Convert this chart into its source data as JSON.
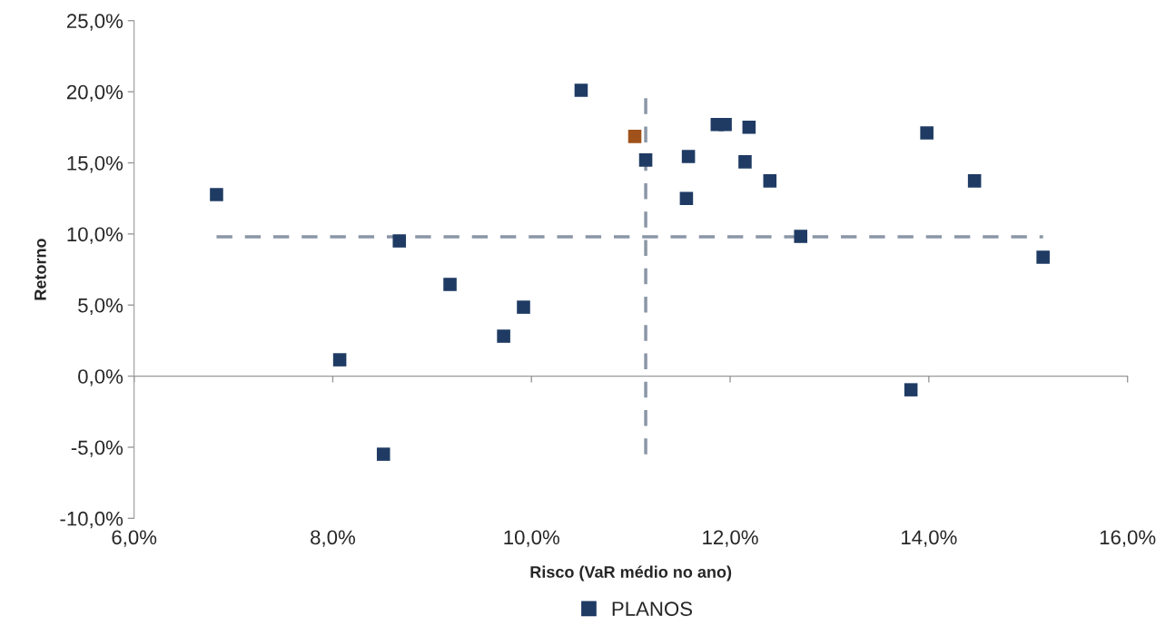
{
  "chart_data": {
    "type": "scatter",
    "xlabel": "Risco (VaR médio no ano)",
    "ylabel": "Retorno",
    "xlim": [
      6,
      16
    ],
    "ylim": [
      -10,
      25
    ],
    "xticks": [
      {
        "value": 6,
        "label": "6,0%"
      },
      {
        "value": 8,
        "label": "8,0%"
      },
      {
        "value": 10,
        "label": "10,0%"
      },
      {
        "value": 12,
        "label": "12,0%"
      },
      {
        "value": 14,
        "label": "14,0%"
      },
      {
        "value": 16,
        "label": "16,0%"
      }
    ],
    "yticks": [
      {
        "value": -10,
        "label": "-10,0%"
      },
      {
        "value": -5,
        "label": "-5,0%"
      },
      {
        "value": 0,
        "label": "0,0%"
      },
      {
        "value": 5,
        "label": "5,0%"
      },
      {
        "value": 10,
        "label": "10,0%"
      },
      {
        "value": 15,
        "label": "15,0%"
      },
      {
        "value": 20,
        "label": "20,0%"
      },
      {
        "value": 25,
        "label": "25,0%"
      }
    ],
    "marker": "square",
    "legend": "bottom",
    "series": [
      {
        "color": "#a0521a",
        "x": [
          11.04
        ],
        "values": [
          16.86
        ]
      },
      {
        "name": "PLANOS",
        "color": "#1f3b64",
        "x": [
          6.83,
          8.07,
          8.51,
          8.67,
          9.18,
          9.72,
          9.92,
          10.5,
          11.15,
          11.56,
          11.58,
          11.87,
          11.95,
          12.19,
          12.15,
          12.4,
          12.71,
          13.82,
          13.98,
          14.46,
          15.15
        ],
        "values": [
          12.77,
          1.15,
          -5.49,
          9.51,
          6.45,
          2.81,
          4.85,
          20.1,
          15.2,
          12.5,
          15.45,
          17.7,
          17.7,
          17.5,
          15.07,
          13.73,
          9.83,
          -0.96,
          17.1,
          13.73,
          8.37
        ]
      }
    ],
    "ref_lines": [
      {
        "axis": "x",
        "value": 11.15,
        "color": "#8a96a6",
        "line_style": "dashed"
      },
      {
        "axis": "y",
        "value": 9.8,
        "color": "#8a96a6",
        "line_style": "dashed"
      }
    ]
  }
}
